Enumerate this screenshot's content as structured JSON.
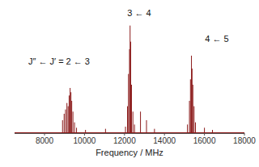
{
  "chart_data": {
    "type": "stick",
    "x_label": "Frequency / MHz",
    "annotations": [
      "J″ ← J′ = 2 ← 3",
      "3 ← 4",
      "4 ← 5"
    ],
    "x": [
      8900,
      8980,
      9050,
      9120,
      9180,
      9230,
      9280,
      9320,
      9360,
      9420,
      9500,
      9600,
      10050,
      11050,
      12050,
      12150,
      12200,
      12250,
      12280,
      12310,
      12350,
      12420,
      12500,
      12800,
      13100,
      13500,
      15150,
      15250,
      15300,
      15350,
      15380,
      15420,
      15480,
      15550,
      16000,
      16400
    ],
    "values": [
      0.12,
      0.18,
      0.22,
      0.28,
      0.25,
      0.35,
      0.42,
      0.38,
      0.3,
      0.2,
      0.1,
      0.05,
      0.03,
      0.04,
      0.06,
      0.25,
      0.55,
      0.78,
      1.0,
      0.85,
      0.45,
      0.2,
      0.08,
      0.2,
      0.12,
      0.04,
      0.08,
      0.3,
      0.5,
      0.72,
      0.6,
      0.45,
      0.25,
      0.1,
      0.05,
      0.03
    ],
    "color": "#8b1a1a",
    "xlim": [
      6500,
      18000
    ],
    "xticks": [
      8000,
      10000,
      12000,
      14000,
      16000,
      18000
    ],
    "ylim": [
      0,
      1.05
    ],
    "tick_labels": "x"
  }
}
